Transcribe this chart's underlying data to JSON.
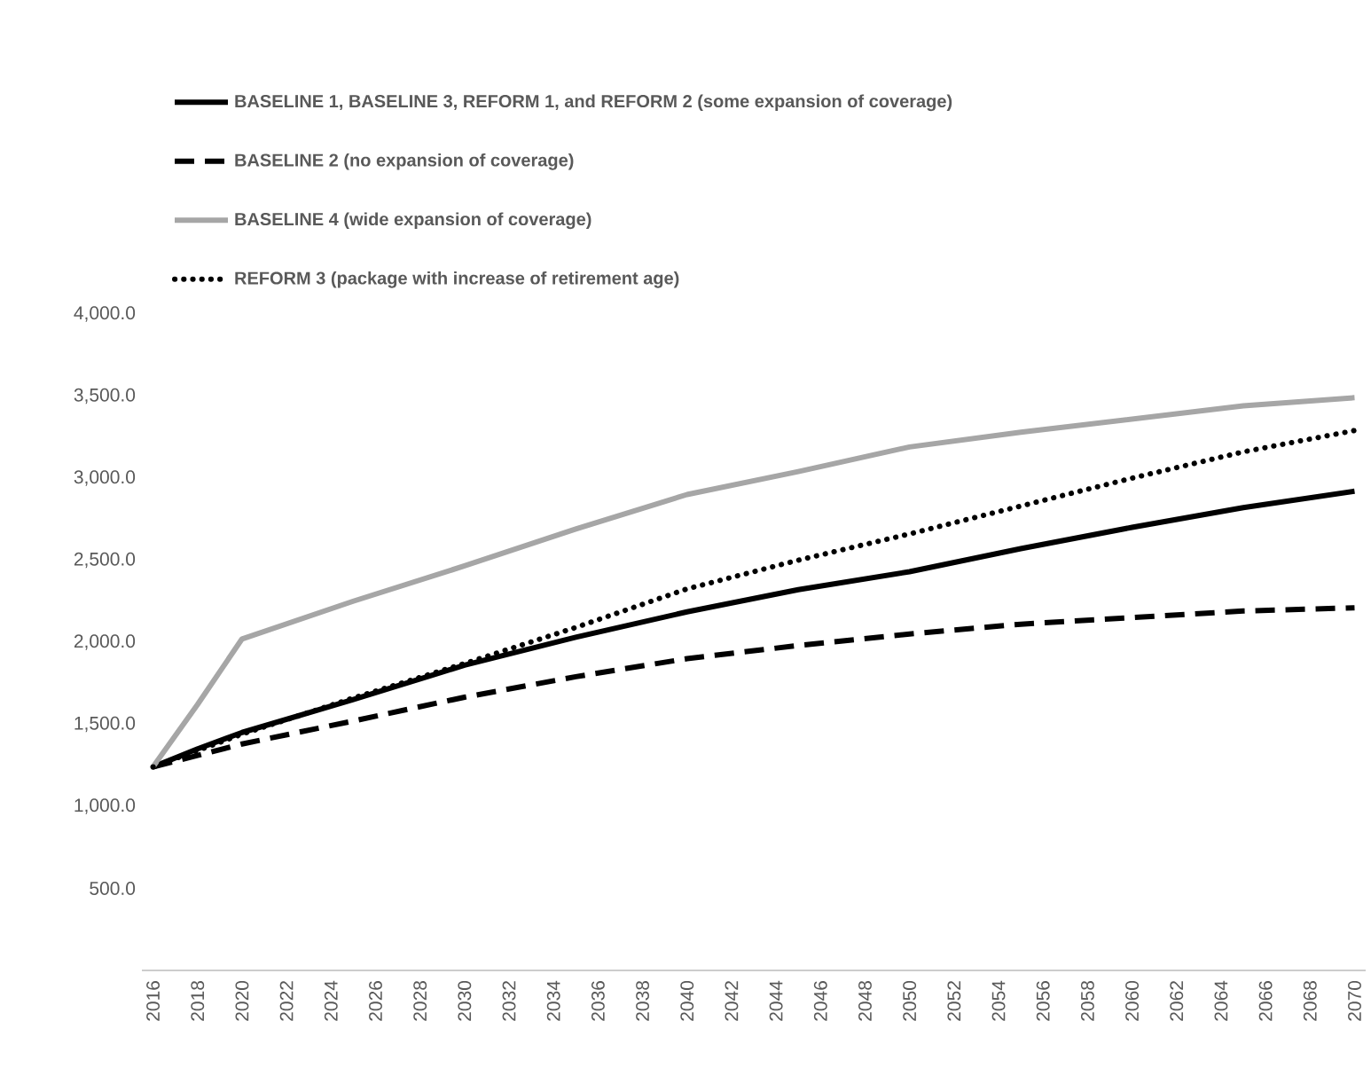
{
  "chart_data": {
    "type": "line",
    "xlim": [
      2015.5,
      2070.5
    ],
    "ylim": [
      0,
      4000
    ],
    "xticks": [
      2016,
      2018,
      2020,
      2022,
      2024,
      2026,
      2028,
      2030,
      2032,
      2034,
      2036,
      2038,
      2040,
      2042,
      2044,
      2046,
      2048,
      2050,
      2052,
      2054,
      2056,
      2058,
      2060,
      2062,
      2064,
      2066,
      2068,
      2070
    ],
    "yticks": [
      {
        "value": 500,
        "label": "500.0"
      },
      {
        "value": 1000,
        "label": "1,000.0"
      },
      {
        "value": 1500,
        "label": "1,500.0"
      },
      {
        "value": 2000,
        "label": "2,000.0"
      },
      {
        "value": 2500,
        "label": "2,500.0"
      },
      {
        "value": 3000,
        "label": "3,000.0"
      },
      {
        "value": 3500,
        "label": "3,500.0"
      },
      {
        "value": 4000,
        "label": "4,000.0"
      }
    ],
    "legend": "top",
    "grid": false,
    "series": [
      {
        "name": "BASELINE 1, BASELINE 3, REFORM 1, and REFORM 2 (some expansion of coverage)",
        "color": "#000000",
        "line_style": "solid",
        "x": [
          2016,
          2018,
          2020,
          2025,
          2030,
          2035,
          2040,
          2045,
          2050,
          2055,
          2060,
          2065,
          2070
        ],
        "values": [
          1240,
          1350,
          1450,
          1650,
          1860,
          2030,
          2185,
          2320,
          2430,
          2570,
          2700,
          2820,
          2920
        ]
      },
      {
        "name": "BASELINE 2 (no expansion of coverage)",
        "color": "#000000",
        "line_style": "dashed",
        "x": [
          2016,
          2018,
          2020,
          2025,
          2030,
          2035,
          2040,
          2045,
          2050,
          2055,
          2060,
          2065,
          2070
        ],
        "values": [
          1240,
          1310,
          1380,
          1520,
          1665,
          1790,
          1900,
          1980,
          2050,
          2110,
          2150,
          2190,
          2210
        ]
      },
      {
        "name": "BASELINE 4 (wide expansion of coverage)",
        "color": "#a6a6a6",
        "line_style": "solid",
        "x": [
          2016,
          2018,
          2020,
          2025,
          2030,
          2035,
          2040,
          2045,
          2050,
          2055,
          2060,
          2065,
          2070
        ],
        "values": [
          1240,
          1620,
          2020,
          2250,
          2465,
          2690,
          2900,
          3040,
          3190,
          3280,
          3360,
          3440,
          3490
        ]
      },
      {
        "name": "REFORM 3 (package with increase of retirement age)",
        "color": "#000000",
        "line_style": "dotted",
        "x": [
          2016,
          2018,
          2020,
          2025,
          2030,
          2035,
          2040,
          2045,
          2050,
          2055,
          2060,
          2065,
          2070
        ],
        "values": [
          1240,
          1340,
          1440,
          1660,
          1870,
          2090,
          2325,
          2500,
          2660,
          2830,
          3000,
          3160,
          3290
        ]
      }
    ]
  }
}
